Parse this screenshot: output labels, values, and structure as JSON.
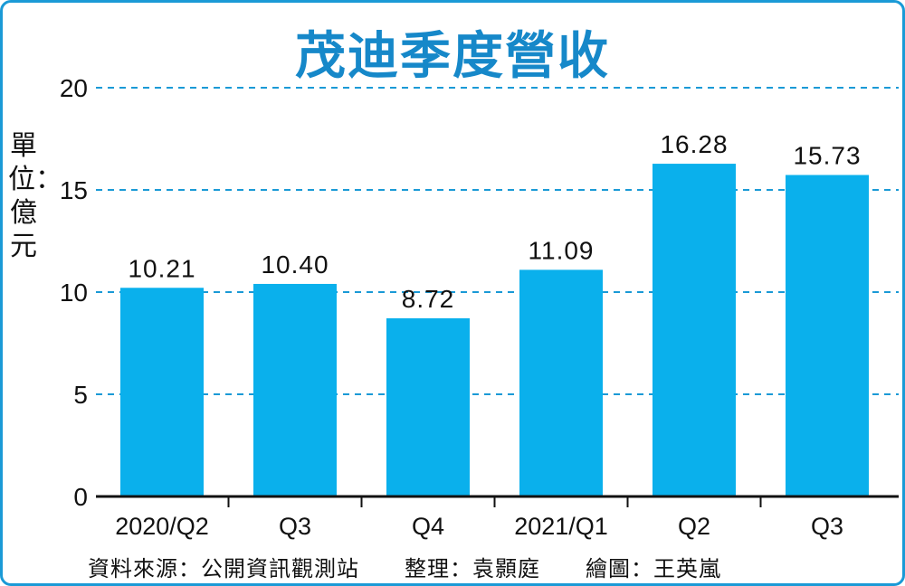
{
  "chart_data": {
    "type": "bar",
    "title": "茂迪季度營收",
    "ylabel": "單位：億元",
    "categories": [
      "2020/Q2",
      "Q3",
      "Q4",
      "2021/Q1",
      "Q2",
      "Q3"
    ],
    "values": [
      10.21,
      10.4,
      8.72,
      11.09,
      16.28,
      15.73
    ],
    "value_labels": [
      "10.21",
      "10.40",
      "8.72",
      "11.09",
      "16.28",
      "15.73"
    ],
    "ylim": [
      0,
      20
    ],
    "yticks": [
      "0",
      "5",
      "10",
      "15",
      "20"
    ],
    "grid": "dashed horizontal",
    "legend": "none"
  },
  "footer": {
    "source": "資料來源：公開資訊觀測站　　整理：袁顥庭　　繪圖：王英嵐"
  },
  "colors": {
    "bar": "#0ab0ec",
    "title": "#1688c9",
    "grid": "#1a9ad6",
    "border": "#1a9ad6"
  }
}
